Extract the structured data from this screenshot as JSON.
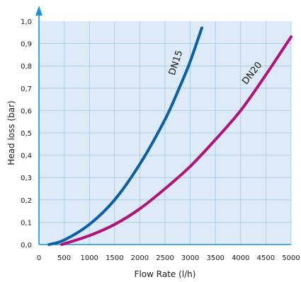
{
  "chart_data": {
    "type": "line",
    "xlabel": "Flow Rate (l/h)",
    "ylabel": "Head loss (bar)",
    "xlim": [
      0,
      5000
    ],
    "ylim": [
      0,
      1.0
    ],
    "x_ticks": [
      "0",
      "500",
      "1000",
      "1500",
      "2000",
      "2500",
      "3000",
      "3500",
      "4000",
      "4500",
      "5000"
    ],
    "y_ticks": [
      "0,0",
      "0,1",
      "0,2",
      "0,3",
      "0,4",
      "0,5",
      "0,6",
      "0,7",
      "0,8",
      "0,9",
      "1,0"
    ],
    "grid": true,
    "series": [
      {
        "name": "DN15",
        "color": "#0b5fa5",
        "points": [
          [
            200,
            0.0
          ],
          [
            500,
            0.02
          ],
          [
            1000,
            0.09
          ],
          [
            1500,
            0.2
          ],
          [
            2000,
            0.36
          ],
          [
            2500,
            0.56
          ],
          [
            2800,
            0.71
          ],
          [
            3000,
            0.82
          ],
          [
            3230,
            0.97
          ]
        ]
      },
      {
        "name": "DN20",
        "color": "#b0137a",
        "points": [
          [
            450,
            0.0
          ],
          [
            1000,
            0.04
          ],
          [
            1500,
            0.09
          ],
          [
            2000,
            0.16
          ],
          [
            2500,
            0.25
          ],
          [
            3000,
            0.35
          ],
          [
            3500,
            0.47
          ],
          [
            4000,
            0.6
          ],
          [
            4500,
            0.76
          ],
          [
            5000,
            0.93
          ]
        ]
      }
    ]
  }
}
